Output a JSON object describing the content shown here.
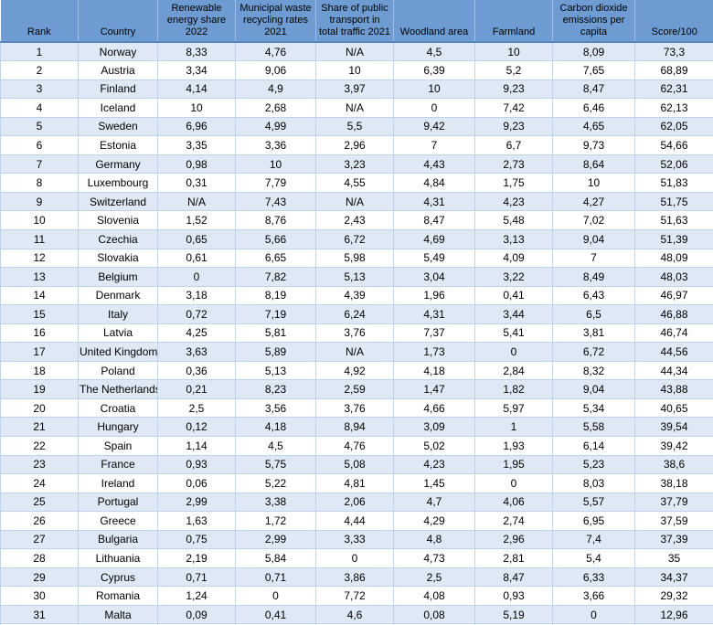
{
  "colors": {
    "header_bg": "#6E9CD2",
    "band_color": "#DEE9F5",
    "grid_line": "#BDD3EC",
    "text": "#000000"
  },
  "chart_data": {
    "type": "table",
    "columns": [
      {
        "label": "Rank",
        "display": "Rank"
      },
      {
        "label": "Country",
        "display": "Country"
      },
      {
        "label": "Renewable energy share 2022",
        "display": "Renewable\nenergy share\n2022"
      },
      {
        "label": "Municipal waste recycling rates 2021",
        "display": "Municipal waste\nrecycling rates\n2021"
      },
      {
        "label": "Share of public transport in total traffic 2021",
        "display": "Share of public\ntransport in\ntotal traffic 2021"
      },
      {
        "label": "Woodland area",
        "display": "Woodland area"
      },
      {
        "label": "Farmland",
        "display": "Farmland"
      },
      {
        "label": "Carbon dioxide emissions per capita",
        "display": "Carbon dioxide\nemissions per\ncapita"
      },
      {
        "label": "Score/100",
        "display": "Score/100"
      }
    ],
    "rows": [
      {
        "rank": "1",
        "country": "Norway",
        "values": [
          "8,33",
          "4,76",
          "N/A",
          "4,5",
          "10",
          "8,09",
          "73,3"
        ]
      },
      {
        "rank": "2",
        "country": "Austria",
        "values": [
          "3,34",
          "9,06",
          "10",
          "6,39",
          "5,2",
          "7,65",
          "68,89"
        ]
      },
      {
        "rank": "3",
        "country": "Finland",
        "values": [
          "4,14",
          "4,9",
          "3,97",
          "10",
          "9,23",
          "8,47",
          "62,31"
        ]
      },
      {
        "rank": "4",
        "country": "Iceland",
        "values": [
          "10",
          "2,68",
          "N/A",
          "0",
          "7,42",
          "6,46",
          "62,13"
        ]
      },
      {
        "rank": "5",
        "country": "Sweden",
        "values": [
          "6,96",
          "4,99",
          "5,5",
          "9,42",
          "9,23",
          "4,65",
          "62,05"
        ]
      },
      {
        "rank": "6",
        "country": "Estonia",
        "values": [
          "3,35",
          "3,36",
          "2,96",
          "7",
          "6,7",
          "9,73",
          "54,66"
        ]
      },
      {
        "rank": "7",
        "country": "Germany",
        "values": [
          "0,98",
          "10",
          "3,23",
          "4,43",
          "2,73",
          "8,64",
          "52,06"
        ]
      },
      {
        "rank": "8",
        "country": "Luxembourg",
        "values": [
          "0,31",
          "7,79",
          "4,55",
          "4,84",
          "1,75",
          "10",
          "51,83"
        ]
      },
      {
        "rank": "9",
        "country": "Switzerland",
        "values": [
          "N/A",
          "7,43",
          "N/A",
          "4,31",
          "4,23",
          "4,27",
          "51,75"
        ]
      },
      {
        "rank": "10",
        "country": "Slovenia",
        "values": [
          "1,52",
          "8,76",
          "2,43",
          "8,47",
          "5,48",
          "7,02",
          "51,63"
        ]
      },
      {
        "rank": "11",
        "country": "Czechia",
        "values": [
          "0,65",
          "5,66",
          "6,72",
          "4,69",
          "3,13",
          "9,04",
          "51,39"
        ]
      },
      {
        "rank": "12",
        "country": "Slovakia",
        "values": [
          "0,61",
          "6,65",
          "5,98",
          "5,49",
          "4,09",
          "7",
          "48,09"
        ]
      },
      {
        "rank": "13",
        "country": "Belgium",
        "values": [
          "0",
          "7,82",
          "5,13",
          "3,04",
          "3,22",
          "8,49",
          "48,03"
        ]
      },
      {
        "rank": "14",
        "country": "Denmark",
        "values": [
          "3,18",
          "8,19",
          "4,39",
          "1,96",
          "0,41",
          "6,43",
          "46,97"
        ]
      },
      {
        "rank": "15",
        "country": "Italy",
        "values": [
          "0,72",
          "7,19",
          "6,24",
          "4,31",
          "3,44",
          "6,5",
          "46,88"
        ]
      },
      {
        "rank": "16",
        "country": "Latvia",
        "values": [
          "4,25",
          "5,81",
          "3,76",
          "7,37",
          "5,41",
          "3,81",
          "46,74"
        ]
      },
      {
        "rank": "17",
        "country": "United Kingdom",
        "values": [
          "3,63",
          "5,89",
          "N/A",
          "1,73",
          "0",
          "6,72",
          "44,56"
        ]
      },
      {
        "rank": "18",
        "country": "Poland",
        "values": [
          "0,36",
          "5,13",
          "4,92",
          "4,18",
          "2,84",
          "8,32",
          "44,34"
        ]
      },
      {
        "rank": "19",
        "country": "The Netherlands",
        "values": [
          "0,21",
          "8,23",
          "2,59",
          "1,47",
          "1,82",
          "9,04",
          "43,88"
        ]
      },
      {
        "rank": "20",
        "country": "Croatia",
        "values": [
          "2,5",
          "3,56",
          "3,76",
          "4,66",
          "5,97",
          "5,34",
          "40,65"
        ]
      },
      {
        "rank": "21",
        "country": "Hungary",
        "values": [
          "0,12",
          "4,18",
          "8,94",
          "3,09",
          "1",
          "5,58",
          "39,54"
        ]
      },
      {
        "rank": "22",
        "country": "Spain",
        "values": [
          "1,14",
          "4,5",
          "4,76",
          "5,02",
          "1,93",
          "6,14",
          "39,42"
        ]
      },
      {
        "rank": "23",
        "country": "France",
        "values": [
          "0,93",
          "5,75",
          "5,08",
          "4,23",
          "1,95",
          "5,23",
          "38,6"
        ]
      },
      {
        "rank": "24",
        "country": "Ireland",
        "values": [
          "0,06",
          "5,22",
          "4,81",
          "1,45",
          "0",
          "8,03",
          "38,18"
        ]
      },
      {
        "rank": "25",
        "country": "Portugal",
        "values": [
          "2,99",
          "3,38",
          "2,06",
          "4,7",
          "4,06",
          "5,57",
          "37,79"
        ]
      },
      {
        "rank": "26",
        "country": "Greece",
        "values": [
          "1,63",
          "1,72",
          "4,44",
          "4,29",
          "2,74",
          "6,95",
          "37,59"
        ]
      },
      {
        "rank": "27",
        "country": "Bulgaria",
        "values": [
          "0,75",
          "2,99",
          "3,33",
          "4,8",
          "2,96",
          "7,4",
          "37,39"
        ]
      },
      {
        "rank": "28",
        "country": "Lithuania",
        "values": [
          "2,19",
          "5,84",
          "0",
          "4,73",
          "2,81",
          "5,4",
          "35"
        ]
      },
      {
        "rank": "29",
        "country": "Cyprus",
        "values": [
          "0,71",
          "0,71",
          "3,86",
          "2,5",
          "8,47",
          "6,33",
          "34,37"
        ]
      },
      {
        "rank": "30",
        "country": "Romania",
        "values": [
          "1,24",
          "0",
          "7,72",
          "4,08",
          "0,93",
          "3,66",
          "29,32"
        ]
      },
      {
        "rank": "31",
        "country": "Malta",
        "values": [
          "0,09",
          "0,41",
          "4,6",
          "0,08",
          "5,19",
          "0",
          "12,96"
        ]
      }
    ]
  }
}
